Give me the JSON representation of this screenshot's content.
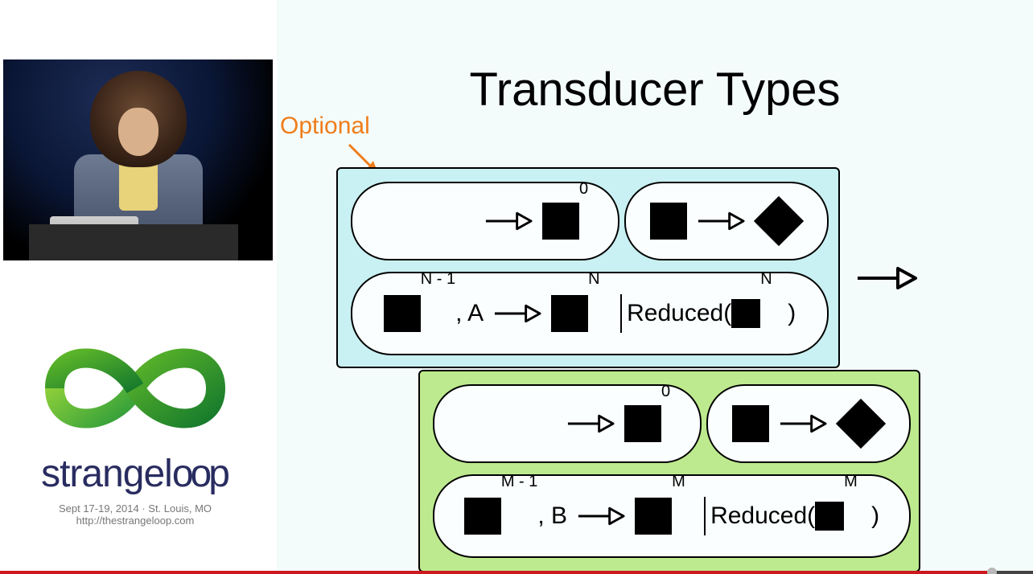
{
  "slide": {
    "title": "Transducer Types",
    "annotation_label": "Optional",
    "annotation_color": "#ef7d1a",
    "boxes": {
      "top": {
        "bg_color": "#c9f0f2",
        "row1": {
          "pillA": {
            "type": "init",
            "exp": "0"
          },
          "pillB": {
            "type": "complete"
          }
        },
        "row2": {
          "accum_exp": "N - 1",
          "letter": ", A",
          "result_exp": "N",
          "reduced_label": "Reduced(",
          "reduced_exp": "N",
          "reduced_close": ")"
        }
      },
      "bottom": {
        "bg_color": "#bdea8e",
        "row1": {
          "pillA": {
            "type": "init",
            "exp": "0"
          },
          "pillB": {
            "type": "complete"
          }
        },
        "row2": {
          "accum_exp": "M - 1",
          "letter": ", B",
          "result_exp": "M",
          "reduced_label": "Reduced(",
          "reduced_exp": "M",
          "reduced_close": ")"
        }
      }
    }
  },
  "logo": {
    "name_pre": "strange",
    "name_mid": "l",
    "name_oo": "oo",
    "name_post": "p",
    "subline": "Sept 17-19, 2014   ·   St. Louis, MO",
    "url": "http://thestrangeloop.com",
    "ribbon_color_a": "#68c026",
    "ribbon_color_b": "#2a9a3a"
  },
  "player": {
    "progress_pct": 96,
    "progress_color": "#cc181e"
  },
  "speaker": {
    "jacket": "#5d6a82",
    "shirt": "#e8d27a",
    "backdrop": "#0a1635"
  }
}
